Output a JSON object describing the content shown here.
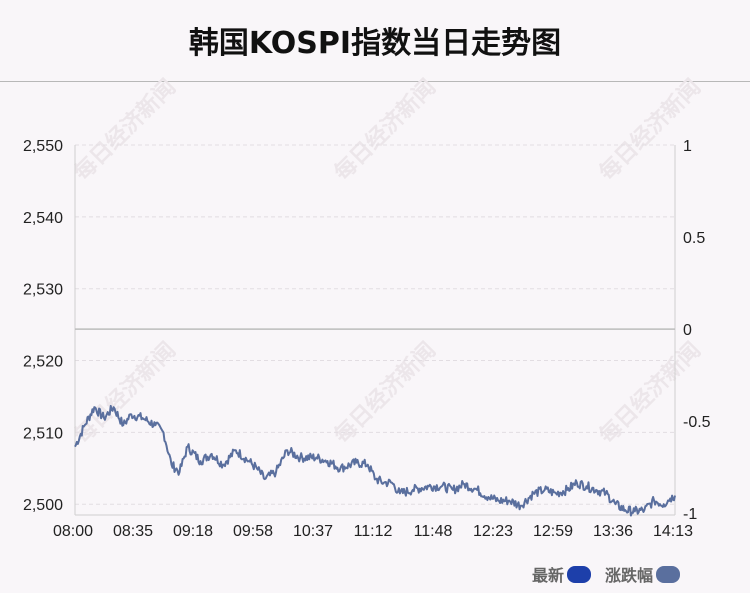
{
  "title": "韩国KOSPI指数当日走势图",
  "chart_data": {
    "type": "line",
    "title": "韩国KOSPI指数当日走势图",
    "x_tick_labels": [
      "08:00",
      "08:35",
      "09:18",
      "09:58",
      "10:37",
      "11:12",
      "11:48",
      "12:23",
      "12:59",
      "13:36",
      "14:13"
    ],
    "y_left": {
      "ticks": [
        "2,550",
        "2,540",
        "2,530",
        "2,520",
        "2,510",
        "2,500"
      ],
      "range": [
        2498.5,
        2550
      ]
    },
    "y_right": {
      "ticks": [
        "1",
        "0.5",
        "0",
        "-0.5",
        "-1"
      ],
      "range": [
        -1.01,
        1
      ]
    },
    "grid": true,
    "legend": [
      {
        "name": "最新",
        "color": "#1d3faa"
      },
      {
        "name": "涨跌幅",
        "color": "#5a6f9e"
      }
    ],
    "series": [
      {
        "name": "最新",
        "color": "#5a6f9e",
        "key_points": [
          [
            "08:00",
            2508.0
          ],
          [
            "08:06",
            2511.0
          ],
          [
            "08:12",
            2513.5
          ],
          [
            "08:18",
            2512.0
          ],
          [
            "08:24",
            2513.5
          ],
          [
            "08:30",
            2511.0
          ],
          [
            "08:35",
            2512.5
          ],
          [
            "08:42",
            2512.0
          ],
          [
            "08:50",
            2511.0
          ],
          [
            "08:55",
            2510.0
          ],
          [
            "09:00",
            2505.5
          ],
          [
            "09:05",
            2504.5
          ],
          [
            "09:10",
            2508.0
          ],
          [
            "09:18",
            2506.0
          ],
          [
            "09:25",
            2507.0
          ],
          [
            "09:32",
            2505.5
          ],
          [
            "09:40",
            2507.5
          ],
          [
            "09:48",
            2506.0
          ],
          [
            "09:53",
            2505.0
          ],
          [
            "09:58",
            2503.5
          ],
          [
            "10:05",
            2504.5
          ],
          [
            "10:12",
            2507.5
          ],
          [
            "10:20",
            2506.5
          ],
          [
            "10:30",
            2506.5
          ],
          [
            "10:37",
            2506.0
          ],
          [
            "10:45",
            2505.0
          ],
          [
            "10:55",
            2505.8
          ],
          [
            "11:02",
            2505.5
          ],
          [
            "11:07",
            2503.5
          ],
          [
            "11:12",
            2503.0
          ],
          [
            "11:17",
            2503.0
          ],
          [
            "11:22",
            2501.5
          ],
          [
            "11:30",
            2502.0
          ],
          [
            "11:40",
            2502.5
          ],
          [
            "11:48",
            2502.5
          ],
          [
            "11:55",
            2502.0
          ],
          [
            "12:02",
            2502.8
          ],
          [
            "12:10",
            2502.0
          ],
          [
            "12:17",
            2501.0
          ],
          [
            "12:23",
            2500.5
          ],
          [
            "12:30",
            2500.5
          ],
          [
            "12:37",
            2499.8
          ],
          [
            "12:45",
            2501.5
          ],
          [
            "12:52",
            2502.0
          ],
          [
            "12:59",
            2501.5
          ],
          [
            "13:06",
            2502.0
          ],
          [
            "13:12",
            2503.0
          ],
          [
            "13:18",
            2502.5
          ],
          [
            "13:24",
            2502.0
          ],
          [
            "13:30",
            2501.5
          ],
          [
            "13:36",
            2500.0
          ],
          [
            "13:42",
            2499.2
          ],
          [
            "13:48",
            2499.0
          ],
          [
            "13:54",
            2499.2
          ],
          [
            "14:00",
            2500.5
          ],
          [
            "14:06",
            2500.0
          ],
          [
            "14:10",
            2500.8
          ],
          [
            "14:13",
            2501.2
          ]
        ]
      }
    ]
  },
  "watermark": "每日经济新闻"
}
